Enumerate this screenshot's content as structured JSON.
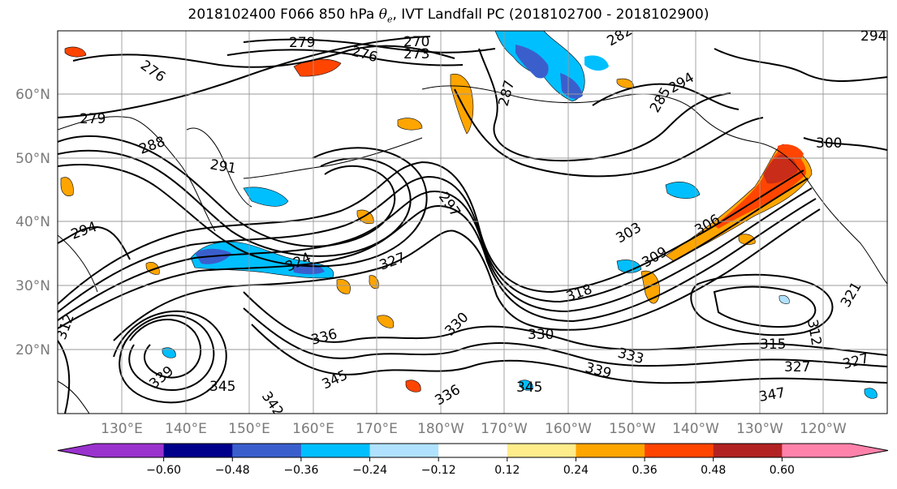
{
  "title": {
    "prefix": "2018102400 F066 850 hPa ",
    "theta_symbol": "θ",
    "theta_sub": "e",
    "suffix": ", IVT Landfall PC (2018102700 - 2018102900)"
  },
  "map": {
    "projection": "lat-lon",
    "lon_range": [
      "120°E",
      "110°W"
    ],
    "lat_range": [
      "10°N",
      "70°N"
    ],
    "grid": true,
    "lat_labels": [
      "60°N",
      "50°N",
      "40°N",
      "30°N",
      "20°N"
    ],
    "lon_labels": [
      "130°E",
      "140°E",
      "150°E",
      "160°E",
      "170°E",
      "180°W",
      "170°W",
      "160°W",
      "150°W",
      "140°W",
      "130°W",
      "120°W"
    ],
    "contour_field": "850 hPa theta-e",
    "contour_labels": [
      "279",
      "276",
      "270",
      "273",
      "282",
      "287",
      "276",
      "279",
      "288",
      "291",
      "285",
      "294",
      "294",
      "300",
      "297",
      "303",
      "306",
      "309",
      "324",
      "327",
      "312",
      "315",
      "318",
      "321",
      "327",
      "330",
      "333",
      "330",
      "336",
      "339",
      "342",
      "345",
      "345",
      "345",
      "347",
      "336",
      "339",
      "327",
      "294",
      "312"
    ],
    "shading_field": "IVT Landfall PC"
  },
  "colorbar": {
    "extend": "both",
    "levels": [
      -0.72,
      -0.6,
      -0.48,
      -0.36,
      -0.24,
      -0.12,
      0.12,
      0.24,
      0.36,
      0.48,
      0.6,
      0.72
    ],
    "tick_labels": [
      "−0.60",
      "−0.48",
      "−0.36",
      "−0.24",
      "−0.12",
      "0.12",
      "0.24",
      "0.36",
      "0.48",
      "0.60"
    ],
    "colors": [
      "#9a32cd",
      "#00008b",
      "#3a5fcd",
      "#00bfff",
      "#b0e2ff",
      "#ffffff",
      "#ffec8b",
      "#ffa500",
      "#ff4500",
      "#b22222",
      "#ff82ab"
    ],
    "under_color": "#9a32cd",
    "over_color": "#ff82ab"
  }
}
